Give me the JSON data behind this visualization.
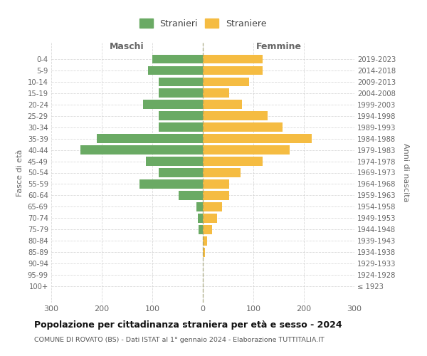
{
  "age_groups": [
    "100+",
    "95-99",
    "90-94",
    "85-89",
    "80-84",
    "75-79",
    "70-74",
    "65-69",
    "60-64",
    "55-59",
    "50-54",
    "45-49",
    "40-44",
    "35-39",
    "30-34",
    "25-29",
    "20-24",
    "15-19",
    "10-14",
    "5-9",
    "0-4"
  ],
  "birth_years": [
    "≤ 1923",
    "1924-1928",
    "1929-1933",
    "1934-1938",
    "1939-1943",
    "1944-1948",
    "1949-1953",
    "1954-1958",
    "1959-1963",
    "1964-1968",
    "1969-1973",
    "1974-1978",
    "1979-1983",
    "1984-1988",
    "1989-1993",
    "1994-1998",
    "1999-2003",
    "2004-2008",
    "2009-2013",
    "2014-2018",
    "2019-2023"
  ],
  "maschi": [
    0,
    0,
    0,
    0,
    0,
    8,
    10,
    12,
    48,
    125,
    88,
    112,
    242,
    210,
    88,
    88,
    118,
    88,
    88,
    108,
    100
  ],
  "femmine": [
    0,
    0,
    0,
    4,
    8,
    18,
    28,
    38,
    52,
    52,
    75,
    118,
    172,
    215,
    158,
    128,
    78,
    52,
    92,
    118,
    118
  ],
  "color_maschi": "#6aaa64",
  "color_femmine": "#f5bc42",
  "background_color": "#ffffff",
  "grid_color": "#d0d0d0",
  "title": "Popolazione per cittadinanza straniera per età e sesso - 2024",
  "subtitle": "COMUNE DI ROVATO (BS) - Dati ISTAT al 1° gennaio 2024 - Elaborazione TUTTITALIA.IT",
  "label_maschi": "Maschi",
  "label_femmine": "Femmine",
  "ylabel_left": "Fasce di età",
  "ylabel_right": "Anni di nascita",
  "legend_maschi": "Stranieri",
  "legend_femmine": "Straniere",
  "xlim": 300,
  "xticks": [
    -300,
    -200,
    -100,
    0,
    100,
    200,
    300
  ],
  "xticklabels": [
    "300",
    "200",
    "100",
    "0",
    "100",
    "200",
    "300"
  ]
}
